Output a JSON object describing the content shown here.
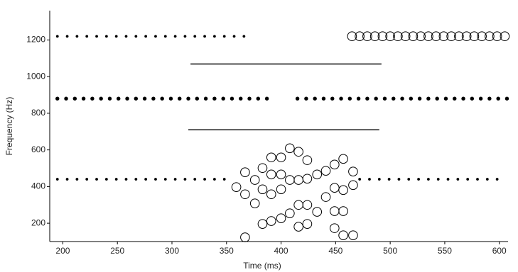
{
  "chart_data": {
    "type": "scatter",
    "xlabel": "Time (ms)",
    "ylabel": "Frequency (Hz)",
    "xlim": [
      188,
      608
    ],
    "ylim": [
      100,
      1360
    ],
    "xticks": [
      200,
      250,
      300,
      350,
      400,
      450,
      500,
      550,
      600
    ],
    "yticks": [
      200,
      400,
      600,
      800,
      1000,
      1200
    ],
    "series": [
      {
        "marker": "small-dot",
        "color": "#000000",
        "x": [
          195,
          204,
          213,
          222,
          231,
          240,
          249,
          258,
          267,
          276,
          285,
          294,
          303,
          312,
          321,
          330,
          339,
          348,
          357,
          366
        ],
        "values": [
          1220,
          1220,
          1220,
          1220,
          1220,
          1220,
          1220,
          1220,
          1220,
          1220,
          1220,
          1220,
          1220,
          1220,
          1220,
          1220,
          1220,
          1220,
          1220,
          1220
        ]
      },
      {
        "marker": "dot",
        "color": "#000000",
        "x": [
          195,
          203,
          211,
          219,
          227,
          235,
          243,
          251,
          259,
          267,
          275,
          283,
          291,
          299,
          307,
          315,
          323,
          331,
          339,
          347,
          355,
          363,
          371,
          379,
          387,
          415,
          423,
          431,
          439,
          447,
          455,
          463,
          471,
          479,
          487,
          495,
          503,
          511,
          519,
          527,
          535,
          543,
          551,
          559,
          567,
          575,
          583,
          591,
          599,
          607
        ],
        "values": [
          880,
          880,
          880,
          880,
          880,
          880,
          880,
          880,
          880,
          880,
          880,
          880,
          880,
          880,
          880,
          880,
          880,
          880,
          880,
          880,
          880,
          880,
          880,
          880,
          880,
          880,
          880,
          880,
          880,
          880,
          880,
          880,
          880,
          880,
          880,
          880,
          880,
          880,
          880,
          880,
          880,
          880,
          880,
          880,
          880,
          880,
          880,
          880,
          880,
          880
        ]
      },
      {
        "marker": "small-dot",
        "color": "#000000",
        "x": [
          195,
          204,
          213,
          222,
          231,
          240,
          249,
          258,
          267,
          276,
          285,
          294,
          303,
          312,
          321,
          330,
          339,
          348,
          472,
          481,
          490,
          499,
          508,
          517,
          526,
          535,
          544,
          553,
          562,
          571,
          580,
          589,
          598
        ],
        "values": [
          440,
          440,
          440,
          440,
          440,
          440,
          440,
          440,
          440,
          440,
          440,
          440,
          440,
          440,
          440,
          440,
          440,
          440,
          440,
          440,
          440,
          440,
          440,
          440,
          440,
          440,
          440,
          440,
          440,
          440,
          440,
          440,
          440
        ]
      },
      {
        "marker": "circle",
        "color": "#000000",
        "x": [
          465,
          472,
          479,
          486,
          493,
          500,
          507,
          514,
          521,
          528,
          535,
          542,
          549,
          556,
          563,
          570,
          577,
          584,
          591,
          598,
          605
        ],
        "values": [
          1220,
          1220,
          1220,
          1220,
          1220,
          1220,
          1220,
          1220,
          1220,
          1220,
          1220,
          1220,
          1220,
          1220,
          1220,
          1220,
          1220,
          1220,
          1220,
          1220,
          1220
        ]
      },
      {
        "marker": "circle",
        "color": "#000000",
        "x": [
          367,
          359,
          367,
          367,
          376,
          376,
          383,
          383,
          383,
          391,
          391,
          391,
          391,
          400,
          400,
          400,
          400,
          408,
          408,
          408,
          416,
          416,
          416,
          416,
          424,
          424,
          424,
          424,
          433,
          433,
          441,
          441,
          449,
          449,
          449,
          449,
          457,
          457,
          457,
          457,
          466,
          466,
          466
        ],
        "values": [
          123,
          397,
          358,
          478,
          308,
          436,
          196,
          385,
          501,
          212,
          358,
          466,
          559,
          227,
          385,
          466,
          559,
          254,
          436,
          609,
          181,
          300,
          436,
          590,
          196,
          300,
          443,
          544,
          262,
          466,
          343,
          486,
          393,
          520,
          266,
          173,
          551,
          381,
          266,
          134,
          134,
          408,
          482
        ]
      },
      {
        "marker": "line",
        "color": "#000000",
        "x": [
          317,
          492
        ],
        "values": [
          1069,
          1069
        ]
      },
      {
        "marker": "line",
        "color": "#000000",
        "x": [
          315,
          490
        ],
        "values": [
          710,
          710
        ]
      }
    ]
  }
}
